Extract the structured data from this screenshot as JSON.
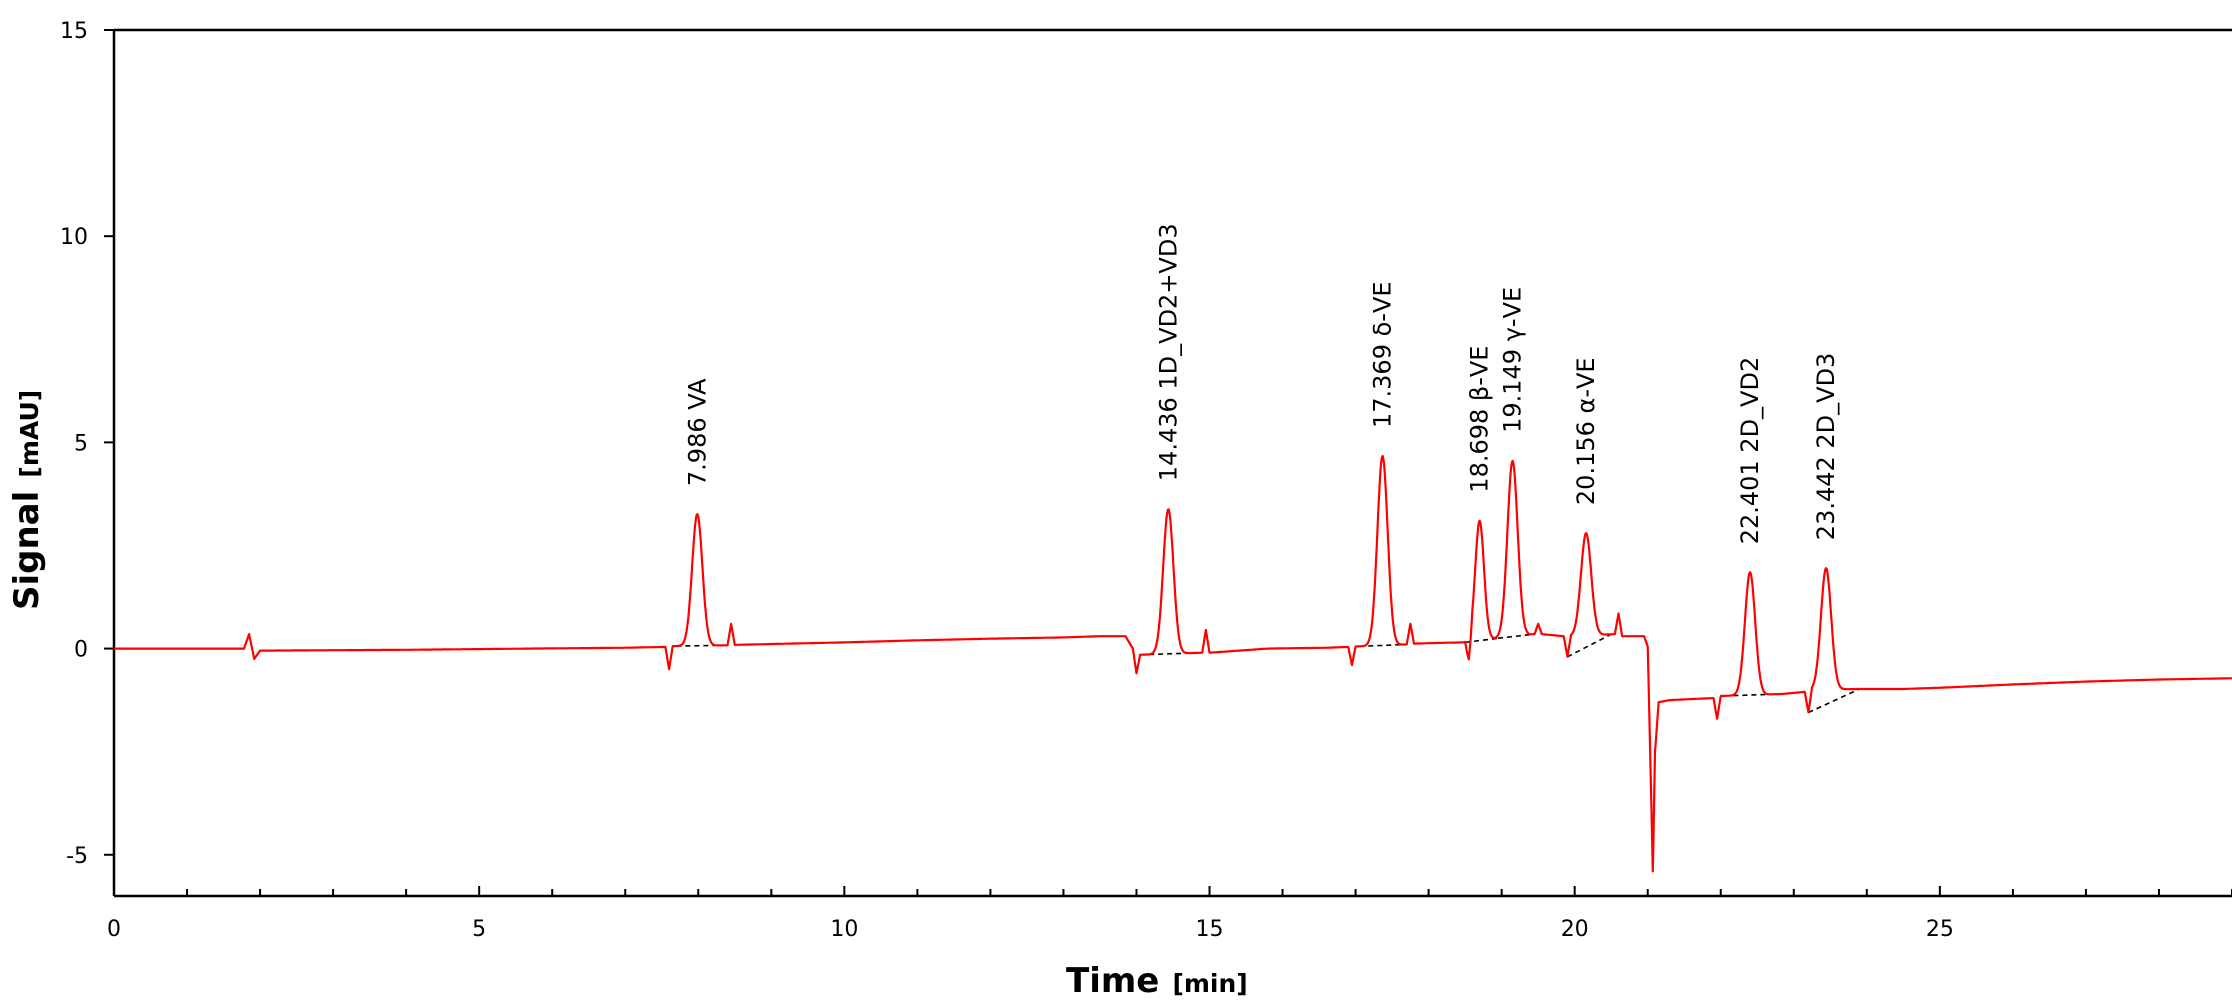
{
  "chart_data": {
    "type": "line",
    "title": "",
    "xlabel": "Time",
    "xlabel_unit": "[min]",
    "ylabel": "Signal",
    "ylabel_unit": "[mAU]",
    "xlim": [
      0,
      29
    ],
    "ylim": [
      -6,
      15
    ],
    "x_ticks": [
      0,
      5,
      10,
      15,
      20,
      25
    ],
    "y_ticks": [
      15,
      10,
      5,
      0,
      -5
    ],
    "grid": false,
    "legend": "none",
    "colors": {
      "signal": "#ff0000",
      "baseline": "#000000"
    },
    "baseline_points": [
      {
        "x": 0.0,
        "y": 0.0
      },
      {
        "x": 1.78,
        "y": 0.0
      },
      {
        "x": 1.85,
        "y": 0.35
      },
      {
        "x": 1.92,
        "y": -0.25
      },
      {
        "x": 2.0,
        "y": -0.05
      },
      {
        "x": 4.0,
        "y": -0.03
      },
      {
        "x": 5.7,
        "y": 0.0
      },
      {
        "x": 7.0,
        "y": 0.02
      },
      {
        "x": 7.55,
        "y": 0.04
      },
      {
        "x": 7.6,
        "y": -0.5
      },
      {
        "x": 7.65,
        "y": 0.06
      },
      {
        "x": 8.4,
        "y": 0.08
      },
      {
        "x": 8.45,
        "y": 0.6
      },
      {
        "x": 8.5,
        "y": 0.09
      },
      {
        "x": 10.0,
        "y": 0.15
      },
      {
        "x": 11.0,
        "y": 0.2
      },
      {
        "x": 12.0,
        "y": 0.24
      },
      {
        "x": 13.0,
        "y": 0.27
      },
      {
        "x": 13.5,
        "y": 0.3
      },
      {
        "x": 13.85,
        "y": 0.3
      },
      {
        "x": 13.95,
        "y": 0.0
      },
      {
        "x": 14.0,
        "y": -0.6
      },
      {
        "x": 14.05,
        "y": -0.15
      },
      {
        "x": 14.9,
        "y": -0.1
      },
      {
        "x": 14.95,
        "y": 0.45
      },
      {
        "x": 15.0,
        "y": -0.1
      },
      {
        "x": 15.8,
        "y": 0.0
      },
      {
        "x": 16.6,
        "y": 0.02
      },
      {
        "x": 16.9,
        "y": 0.04
      },
      {
        "x": 16.95,
        "y": -0.4
      },
      {
        "x": 17.0,
        "y": 0.05
      },
      {
        "x": 17.7,
        "y": 0.1
      },
      {
        "x": 17.75,
        "y": 0.6
      },
      {
        "x": 17.8,
        "y": 0.12
      },
      {
        "x": 18.2,
        "y": 0.14
      },
      {
        "x": 18.5,
        "y": 0.15
      },
      {
        "x": 18.55,
        "y": -0.4
      },
      {
        "x": 18.6,
        "y": 0.18
      },
      {
        "x": 19.45,
        "y": 0.35
      },
      {
        "x": 19.5,
        "y": 0.6
      },
      {
        "x": 19.55,
        "y": 0.35
      },
      {
        "x": 19.85,
        "y": 0.3
      },
      {
        "x": 19.9,
        "y": -0.2
      },
      {
        "x": 19.95,
        "y": 0.3
      },
      {
        "x": 20.55,
        "y": 0.35
      },
      {
        "x": 20.6,
        "y": 0.85
      },
      {
        "x": 20.65,
        "y": 0.3
      },
      {
        "x": 20.95,
        "y": 0.3
      },
      {
        "x": 21.0,
        "y": 0.05
      },
      {
        "x": 21.04,
        "y": -3.0
      },
      {
        "x": 21.07,
        "y": -5.4
      },
      {
        "x": 21.1,
        "y": -2.5
      },
      {
        "x": 21.15,
        "y": -1.3
      },
      {
        "x": 21.3,
        "y": -1.25
      },
      {
        "x": 21.9,
        "y": -1.2
      },
      {
        "x": 21.95,
        "y": -1.7
      },
      {
        "x": 22.0,
        "y": -1.15
      },
      {
        "x": 22.85,
        "y": -1.1
      },
      {
        "x": 23.15,
        "y": -1.05
      },
      {
        "x": 23.2,
        "y": -1.55
      },
      {
        "x": 23.25,
        "y": -1.0
      },
      {
        "x": 23.9,
        "y": -0.98
      },
      {
        "x": 24.5,
        "y": -0.98
      },
      {
        "x": 25.0,
        "y": -0.95
      },
      {
        "x": 26.0,
        "y": -0.87
      },
      {
        "x": 27.0,
        "y": -0.8
      },
      {
        "x": 28.0,
        "y": -0.75
      },
      {
        "x": 29.0,
        "y": -0.72
      }
    ],
    "peaks": [
      {
        "label": "7.986  VA",
        "rt": 7.986,
        "height": 3.2,
        "base": 0.06,
        "width": 0.07,
        "baseline_from": 7.7,
        "baseline_to": 8.4
      },
      {
        "label": "14.436  1D_VD2+VD3",
        "rt": 14.436,
        "height": 3.5,
        "base": -0.12,
        "width": 0.07,
        "baseline_from": 14.05,
        "baseline_to": 14.9
      },
      {
        "label": "17.369  δ-VE",
        "rt": 17.369,
        "height": 4.6,
        "base": 0.07,
        "width": 0.07,
        "baseline_from": 17.05,
        "baseline_to": 17.7
      },
      {
        "label": "18.698  β-VE",
        "rt": 18.698,
        "height": 2.9,
        "base": 0.2,
        "width": 0.06,
        "baseline_from": 18.5,
        "baseline_to": 18.95
      },
      {
        "label": "19.149  γ-VE",
        "rt": 19.149,
        "height": 4.2,
        "base": 0.35,
        "width": 0.07,
        "baseline_from": 18.95,
        "baseline_to": 19.45
      },
      {
        "label": "20.156  α-VE",
        "rt": 20.156,
        "height": 2.5,
        "base": 0.3,
        "width": 0.07,
        "baseline_from": 19.9,
        "baseline_to": 20.5
      },
      {
        "label": "22.401  2D_VD2",
        "rt": 22.401,
        "height": 3.0,
        "base": -1.15,
        "width": 0.07,
        "baseline_from": 22.05,
        "baseline_to": 22.85
      },
      {
        "label": "23.442  2D_VD3",
        "rt": 23.442,
        "height": 3.0,
        "base": -1.05,
        "width": 0.07,
        "baseline_from": 23.2,
        "baseline_to": 23.9
      }
    ]
  }
}
